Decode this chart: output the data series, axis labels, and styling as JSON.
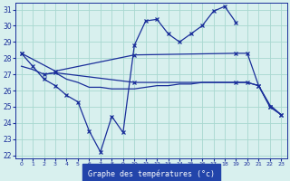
{
  "title": "Graphe des températures (°c)",
  "bg_color": "#d8f0ee",
  "grid_color": "#a8d8d0",
  "line_color": "#1a2e9a",
  "xlim": [
    -0.5,
    23.5
  ],
  "ylim": [
    21.8,
    31.4
  ],
  "yticks": [
    22,
    23,
    24,
    25,
    26,
    27,
    28,
    29,
    30,
    31
  ],
  "xticks": [
    0,
    1,
    2,
    3,
    4,
    5,
    6,
    7,
    8,
    9,
    10,
    11,
    12,
    13,
    14,
    15,
    16,
    17,
    18,
    19,
    20,
    21,
    22,
    23
  ],
  "line1_x": [
    0,
    1,
    2,
    3,
    4,
    5,
    6,
    7,
    8,
    9,
    10,
    11,
    12,
    13,
    14,
    15,
    16,
    17,
    18,
    19
  ],
  "line1_y": [
    28.3,
    27.5,
    26.7,
    26.3,
    25.7,
    25.3,
    23.5,
    22.2,
    24.4,
    23.4,
    28.8,
    30.3,
    30.4,
    29.5,
    29.0,
    29.5,
    30.0,
    30.9,
    31.2,
    30.2
  ],
  "line2_x": [
    0,
    3,
    10,
    19,
    20,
    21,
    22,
    23
  ],
  "line2_y": [
    28.3,
    27.2,
    28.2,
    28.3,
    28.3,
    26.3,
    25.0,
    24.5
  ],
  "line3_x": [
    0,
    1,
    2,
    3,
    4,
    5,
    6,
    7,
    8,
    9,
    10,
    11,
    12,
    13,
    14,
    15,
    16,
    17,
    18,
    19,
    20,
    21,
    22,
    23
  ],
  "line3_y": [
    27.5,
    27.3,
    27.0,
    27.1,
    26.7,
    26.5,
    26.2,
    26.2,
    26.1,
    26.1,
    26.1,
    26.2,
    26.3,
    26.3,
    26.4,
    26.4,
    26.5,
    26.5,
    26.5,
    26.5,
    26.5,
    26.3,
    25.1,
    24.5
  ],
  "line4_x": [
    2,
    3,
    10,
    19,
    20,
    21,
    22,
    23
  ],
  "line4_y": [
    27.0,
    27.1,
    26.5,
    26.5,
    26.5,
    26.3,
    25.0,
    24.5
  ]
}
